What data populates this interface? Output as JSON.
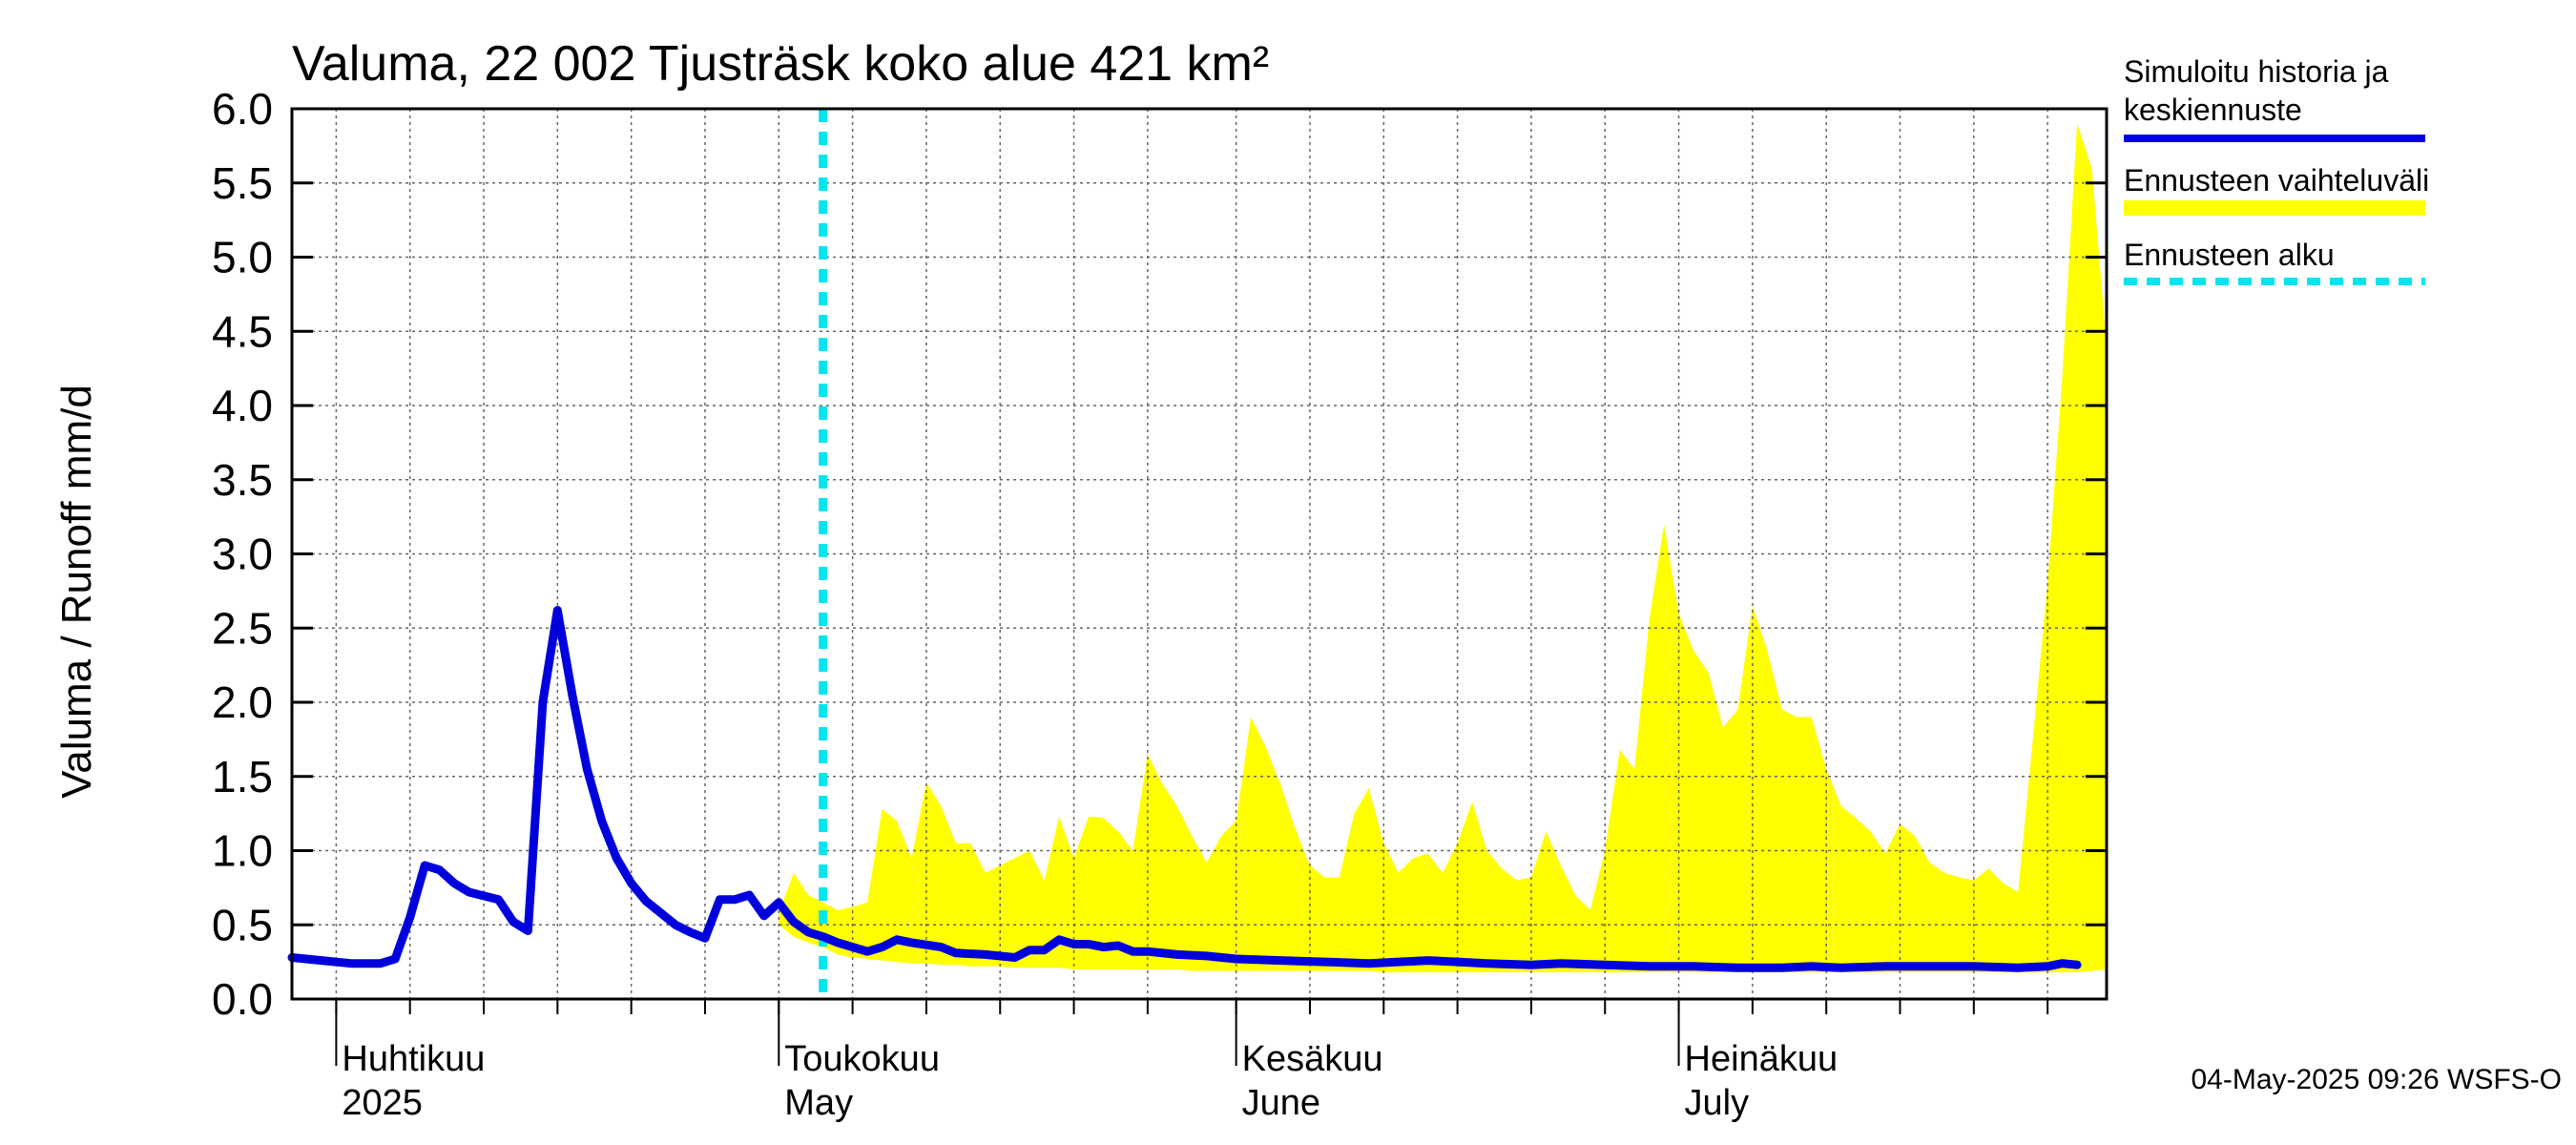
{
  "chart_data": {
    "type": "line",
    "title": "Valuma, 22 002 Tjusträsk koko alue 421 km²",
    "ylabel": "Valuma / Runoff    mm/d",
    "ylim": [
      0,
      6
    ],
    "yticks": [
      0.0,
      0.5,
      1.0,
      1.5,
      2.0,
      2.5,
      3.0,
      3.5,
      4.0,
      4.5,
      5.0,
      5.5,
      6.0
    ],
    "ytick_labels": [
      "0.0",
      "0.5",
      "1.0",
      "1.5",
      "2.0",
      "2.5",
      "3.0",
      "3.5",
      "4.0",
      "4.5",
      "5.0",
      "5.5",
      "6.0"
    ],
    "grid": true,
    "legend_position": "right",
    "x_start": "2025-03-29",
    "x_end": "2025-07-30",
    "date_ticks": [
      "2025-04-01",
      "2025-04-06",
      "2025-04-11",
      "2025-04-16",
      "2025-04-21",
      "2025-04-26",
      "2025-05-01",
      "2025-05-06",
      "2025-05-11",
      "2025-05-16",
      "2025-05-21",
      "2025-05-26",
      "2025-06-01",
      "2025-06-06",
      "2025-06-11",
      "2025-06-16",
      "2025-06-21",
      "2025-06-26",
      "2025-07-01",
      "2025-07-06",
      "2025-07-11",
      "2025-07-16",
      "2025-07-21",
      "2025-07-26"
    ],
    "month_labels": [
      {
        "date": "2025-04-01",
        "fi": "Huhtikuu",
        "en": "2025"
      },
      {
        "date": "2025-05-01",
        "fi": "Toukokuu",
        "en": "May"
      },
      {
        "date": "2025-06-01",
        "fi": "Kesäkuu",
        "en": "June"
      },
      {
        "date": "2025-07-01",
        "fi": "Heinäkuu",
        "en": "July"
      }
    ],
    "forecast_start": "2025-05-04",
    "series": [
      {
        "name": "Simuloitu historia ja keskiennuste",
        "color": "#0000dd",
        "points": [
          [
            "2025-03-29",
            0.28
          ],
          [
            "2025-03-31",
            0.26
          ],
          [
            "2025-04-02",
            0.24
          ],
          [
            "2025-04-04",
            0.24
          ],
          [
            "2025-04-05",
            0.27
          ],
          [
            "2025-04-06",
            0.55
          ],
          [
            "2025-04-07",
            0.9
          ],
          [
            "2025-04-08",
            0.87
          ],
          [
            "2025-04-09",
            0.78
          ],
          [
            "2025-04-10",
            0.72
          ],
          [
            "2025-04-12",
            0.67
          ],
          [
            "2025-04-13",
            0.52
          ],
          [
            "2025-04-14",
            0.46
          ],
          [
            "2025-04-15",
            2.0
          ],
          [
            "2025-04-16",
            2.62
          ],
          [
            "2025-04-17",
            2.05
          ],
          [
            "2025-04-18",
            1.55
          ],
          [
            "2025-04-19",
            1.2
          ],
          [
            "2025-04-20",
            0.95
          ],
          [
            "2025-04-21",
            0.78
          ],
          [
            "2025-04-22",
            0.66
          ],
          [
            "2025-04-23",
            0.58
          ],
          [
            "2025-04-24",
            0.5
          ],
          [
            "2025-04-25",
            0.45
          ],
          [
            "2025-04-26",
            0.41
          ],
          [
            "2025-04-27",
            0.67
          ],
          [
            "2025-04-28",
            0.67
          ],
          [
            "2025-04-29",
            0.7
          ],
          [
            "2025-04-30",
            0.56
          ],
          [
            "2025-05-01",
            0.65
          ],
          [
            "2025-05-02",
            0.52
          ],
          [
            "2025-05-03",
            0.45
          ],
          [
            "2025-05-04",
            0.42
          ],
          [
            "2025-05-05",
            0.38
          ],
          [
            "2025-05-06",
            0.35
          ],
          [
            "2025-05-07",
            0.32
          ],
          [
            "2025-05-08",
            0.35
          ],
          [
            "2025-05-09",
            0.4
          ],
          [
            "2025-05-10",
            0.38
          ],
          [
            "2025-05-12",
            0.35
          ],
          [
            "2025-05-13",
            0.31
          ],
          [
            "2025-05-15",
            0.3
          ],
          [
            "2025-05-17",
            0.28
          ],
          [
            "2025-05-18",
            0.33
          ],
          [
            "2025-05-19",
            0.33
          ],
          [
            "2025-05-20",
            0.4
          ],
          [
            "2025-05-21",
            0.37
          ],
          [
            "2025-05-22",
            0.37
          ],
          [
            "2025-05-23",
            0.35
          ],
          [
            "2025-05-24",
            0.36
          ],
          [
            "2025-05-25",
            0.32
          ],
          [
            "2025-05-26",
            0.32
          ],
          [
            "2025-05-28",
            0.3
          ],
          [
            "2025-05-30",
            0.29
          ],
          [
            "2025-06-01",
            0.27
          ],
          [
            "2025-06-04",
            0.26
          ],
          [
            "2025-06-07",
            0.25
          ],
          [
            "2025-06-10",
            0.24
          ],
          [
            "2025-06-12",
            0.25
          ],
          [
            "2025-06-14",
            0.26
          ],
          [
            "2025-06-16",
            0.25
          ],
          [
            "2025-06-18",
            0.24
          ],
          [
            "2025-06-21",
            0.23
          ],
          [
            "2025-06-23",
            0.24
          ],
          [
            "2025-06-26",
            0.23
          ],
          [
            "2025-06-29",
            0.22
          ],
          [
            "2025-07-02",
            0.22
          ],
          [
            "2025-07-05",
            0.21
          ],
          [
            "2025-07-08",
            0.21
          ],
          [
            "2025-07-10",
            0.22
          ],
          [
            "2025-07-12",
            0.21
          ],
          [
            "2025-07-15",
            0.22
          ],
          [
            "2025-07-18",
            0.22
          ],
          [
            "2025-07-21",
            0.22
          ],
          [
            "2025-07-24",
            0.21
          ],
          [
            "2025-07-26",
            0.22
          ],
          [
            "2025-07-27",
            0.24
          ],
          [
            "2025-07-28",
            0.23
          ]
        ]
      }
    ],
    "band": {
      "name": "Ennusteen vaihteluväli",
      "color": "#ffff00",
      "points": [
        [
          "2025-05-01",
          0.5,
          0.58
        ],
        [
          "2025-05-02",
          0.42,
          0.85
        ],
        [
          "2025-05-03",
          0.38,
          0.7
        ],
        [
          "2025-05-04",
          0.35,
          0.65
        ],
        [
          "2025-05-05",
          0.3,
          0.6
        ],
        [
          "2025-05-06",
          0.28,
          0.62
        ],
        [
          "2025-05-07",
          0.27,
          0.65
        ],
        [
          "2025-05-08",
          0.26,
          1.28
        ],
        [
          "2025-05-09",
          0.25,
          1.2
        ],
        [
          "2025-05-10",
          0.24,
          0.95
        ],
        [
          "2025-05-11",
          0.24,
          1.46
        ],
        [
          "2025-05-12",
          0.23,
          1.3
        ],
        [
          "2025-05-13",
          0.23,
          1.05
        ],
        [
          "2025-05-14",
          0.22,
          1.05
        ],
        [
          "2025-05-15",
          0.22,
          0.85
        ],
        [
          "2025-05-16",
          0.22,
          0.9
        ],
        [
          "2025-05-17",
          0.21,
          0.95
        ],
        [
          "2025-05-18",
          0.21,
          1.0
        ],
        [
          "2025-05-19",
          0.21,
          0.8
        ],
        [
          "2025-05-20",
          0.21,
          1.23
        ],
        [
          "2025-05-21",
          0.2,
          0.95
        ],
        [
          "2025-05-22",
          0.2,
          1.23
        ],
        [
          "2025-05-23",
          0.2,
          1.22
        ],
        [
          "2025-05-24",
          0.2,
          1.13
        ],
        [
          "2025-05-25",
          0.2,
          1.0
        ],
        [
          "2025-05-26",
          0.2,
          1.65
        ],
        [
          "2025-05-27",
          0.2,
          1.45
        ],
        [
          "2025-05-28",
          0.2,
          1.3
        ],
        [
          "2025-05-29",
          0.19,
          1.1
        ],
        [
          "2025-05-30",
          0.19,
          0.92
        ],
        [
          "2025-05-31",
          0.19,
          1.1
        ],
        [
          "2025-06-01",
          0.19,
          1.2
        ],
        [
          "2025-06-02",
          0.19,
          1.9
        ],
        [
          "2025-06-03",
          0.19,
          1.7
        ],
        [
          "2025-06-04",
          0.19,
          1.45
        ],
        [
          "2025-06-05",
          0.19,
          1.15
        ],
        [
          "2025-06-06",
          0.19,
          0.9
        ],
        [
          "2025-06-07",
          0.19,
          0.82
        ],
        [
          "2025-06-08",
          0.19,
          0.82
        ],
        [
          "2025-06-09",
          0.19,
          1.25
        ],
        [
          "2025-06-10",
          0.19,
          1.42
        ],
        [
          "2025-06-11",
          0.18,
          1.05
        ],
        [
          "2025-06-12",
          0.18,
          0.85
        ],
        [
          "2025-06-13",
          0.18,
          0.95
        ],
        [
          "2025-06-14",
          0.18,
          0.98
        ],
        [
          "2025-06-15",
          0.18,
          0.85
        ],
        [
          "2025-06-16",
          0.18,
          1.05
        ],
        [
          "2025-06-17",
          0.18,
          1.33
        ],
        [
          "2025-06-18",
          0.18,
          1.0
        ],
        [
          "2025-06-19",
          0.18,
          0.88
        ],
        [
          "2025-06-20",
          0.18,
          0.8
        ],
        [
          "2025-06-21",
          0.18,
          0.82
        ],
        [
          "2025-06-22",
          0.18,
          1.13
        ],
        [
          "2025-06-23",
          0.18,
          0.9
        ],
        [
          "2025-06-24",
          0.18,
          0.7
        ],
        [
          "2025-06-25",
          0.18,
          0.6
        ],
        [
          "2025-06-26",
          0.18,
          1.0
        ],
        [
          "2025-06-27",
          0.18,
          1.68
        ],
        [
          "2025-06-28",
          0.18,
          1.55
        ],
        [
          "2025-06-29",
          0.18,
          2.55
        ],
        [
          "2025-06-30",
          0.18,
          3.2
        ],
        [
          "2025-07-01",
          0.18,
          2.6
        ],
        [
          "2025-07-02",
          0.18,
          2.35
        ],
        [
          "2025-07-03",
          0.18,
          2.2
        ],
        [
          "2025-07-04",
          0.18,
          1.83
        ],
        [
          "2025-07-05",
          0.18,
          1.95
        ],
        [
          "2025-07-06",
          0.18,
          2.65
        ],
        [
          "2025-07-07",
          0.18,
          2.35
        ],
        [
          "2025-07-08",
          0.18,
          1.95
        ],
        [
          "2025-07-09",
          0.18,
          1.9
        ],
        [
          "2025-07-10",
          0.18,
          1.9
        ],
        [
          "2025-07-11",
          0.18,
          1.55
        ],
        [
          "2025-07-12",
          0.18,
          1.3
        ],
        [
          "2025-07-13",
          0.18,
          1.22
        ],
        [
          "2025-07-14",
          0.18,
          1.13
        ],
        [
          "2025-07-15",
          0.18,
          0.98
        ],
        [
          "2025-07-16",
          0.18,
          1.18
        ],
        [
          "2025-07-17",
          0.18,
          1.1
        ],
        [
          "2025-07-18",
          0.18,
          0.92
        ],
        [
          "2025-07-19",
          0.18,
          0.85
        ],
        [
          "2025-07-20",
          0.18,
          0.82
        ],
        [
          "2025-07-21",
          0.18,
          0.8
        ],
        [
          "2025-07-22",
          0.18,
          0.88
        ],
        [
          "2025-07-23",
          0.18,
          0.78
        ],
        [
          "2025-07-24",
          0.18,
          0.72
        ],
        [
          "2025-07-25",
          0.18,
          1.75
        ],
        [
          "2025-07-26",
          0.18,
          2.8
        ],
        [
          "2025-07-27",
          0.18,
          4.2
        ],
        [
          "2025-07-28",
          0.18,
          5.9
        ],
        [
          "2025-07-29",
          0.19,
          5.6
        ],
        [
          "2025-07-30",
          0.2,
          4.4
        ]
      ]
    },
    "legend": [
      {
        "key": "sim",
        "lines": [
          "Simuloitu historia ja",
          "keskiennuste"
        ],
        "color": "#0000dd",
        "style": "solid"
      },
      {
        "key": "band",
        "lines": [
          "Ennusteen vaihteluväli"
        ],
        "color": "#ffff00",
        "style": "solid"
      },
      {
        "key": "start",
        "lines": [
          "Ennusteen alku"
        ],
        "color": "#00e5ee",
        "style": "dashed"
      }
    ],
    "footer": "04-May-2025 09:26 WSFS-O"
  }
}
